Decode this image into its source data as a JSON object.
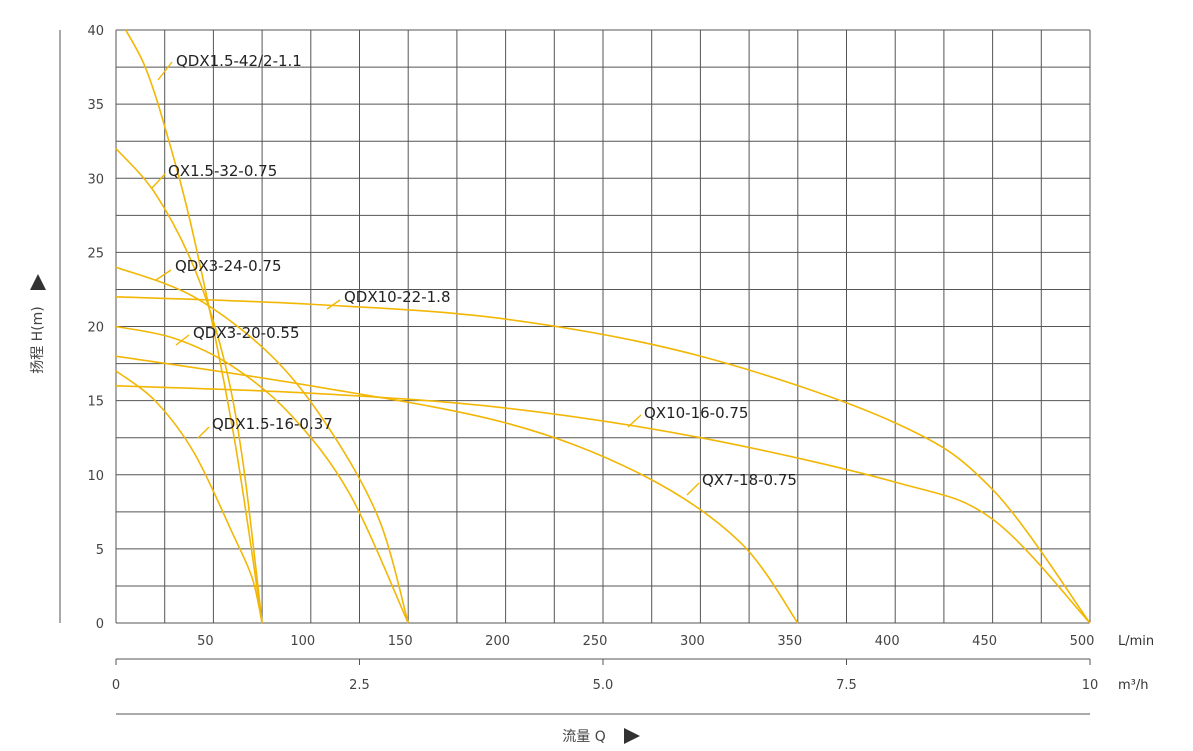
{
  "chart_data": {
    "type": "line",
    "title": "",
    "ylabel": "扬程 H(m)",
    "xlabel": "流量 Q",
    "ylim": [
      0,
      40
    ],
    "xlim": [
      0,
      500
    ],
    "grid": true,
    "legend": "inline labels with leader lines",
    "curve_color": "#F2B705",
    "grid_color": "#555555",
    "y_ticks": [
      "0",
      "5",
      "10",
      "15",
      "20",
      "25",
      "30",
      "35",
      "40"
    ],
    "x_ticks_lmin": [
      "50",
      "100",
      "150",
      "200",
      "250",
      "300",
      "350",
      "400",
      "450",
      "500"
    ],
    "x_unit_lmin": "L/min",
    "x_ticks_m3h": [
      "0",
      "2.5",
      "5.0",
      "7.5",
      "10"
    ],
    "x_unit_m3h": "m³/h",
    "series": [
      {
        "name": "QDX1.5-42/2-1.1",
        "x": [
          5,
          15,
          25,
          40,
          60,
          75
        ],
        "y": [
          40,
          37.5,
          33.5,
          26,
          13,
          0
        ]
      },
      {
        "name": "QX1.5-32-0.75",
        "x": [
          0,
          20,
          40,
          55,
          65,
          75
        ],
        "y": [
          32,
          29,
          24,
          18,
          11,
          0
        ]
      },
      {
        "name": "QDX3-24-0.75",
        "x": [
          0,
          40,
          80,
          110,
          135,
          150
        ],
        "y": [
          24,
          22,
          18,
          13,
          7,
          0
        ]
      },
      {
        "name": "QDX10-22-1.8",
        "x": [
          0,
          100,
          200,
          300,
          400,
          450,
          500
        ],
        "y": [
          22,
          21.5,
          20.5,
          18,
          13.5,
          9,
          0
        ]
      },
      {
        "name": "QDX3-20-0.55",
        "x": [
          0,
          30,
          60,
          90,
          120,
          150
        ],
        "y": [
          20,
          19.2,
          17.3,
          14,
          8.7,
          0
        ]
      },
      {
        "name": "QDX1.5-16-0.37",
        "x": [
          0,
          20,
          40,
          60,
          70,
          75
        ],
        "y": [
          17,
          15,
          11.5,
          6,
          3,
          0
        ]
      },
      {
        "name": "QX10-16-0.75",
        "x": [
          0,
          100,
          200,
          300,
          400,
          450,
          500
        ],
        "y": [
          16,
          15.5,
          14.5,
          12.5,
          9.5,
          7,
          0
        ]
      },
      {
        "name": "QX7-18-0.75",
        "x": [
          0,
          100,
          200,
          270,
          320,
          350
        ],
        "y": [
          18,
          16,
          13.5,
          10,
          5.5,
          0
        ]
      }
    ]
  }
}
